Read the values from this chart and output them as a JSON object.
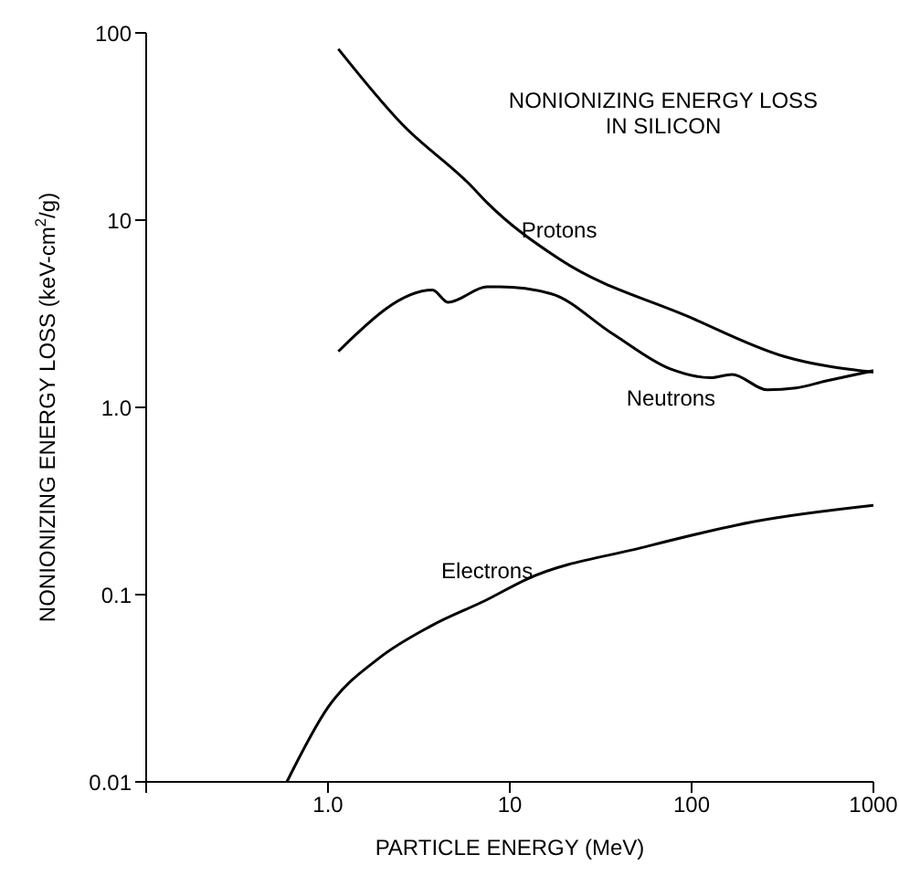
{
  "chart_data": {
    "type": "line",
    "title": "NONIONIZING ENERGY LOSS\nIN SILICON",
    "xlabel": "PARTICLE ENERGY (MeV)",
    "ylabel": "NONIONIZING ENERGY LOSS (keV-cm$^{2}$/g)",
    "log": "xy",
    "grid": false,
    "legend": false,
    "marker": "none",
    "line_style": "solid",
    "xlim": [
      0.1,
      1000
    ],
    "xticks": [
      {
        "value": 0.1,
        "label": null
      },
      {
        "value": 1,
        "label": "1.0"
      },
      10,
      100,
      1000
    ],
    "ylim": [
      0.01,
      100
    ],
    "yticks": [
      0.01,
      0.1,
      {
        "value": 1,
        "label": "1.0"
      },
      10,
      100
    ],
    "series": [
      {
        "name": "Protons",
        "color": "#000000",
        "x": [
          1.14,
          2.55,
          6.06,
          7.5,
          18.7,
          95.5,
          323,
          1000
        ],
        "values": [
          82,
          32.6,
          15.4,
          12.4,
          6.2,
          3.06,
          1.87,
          1.54
        ]
      },
      {
        "name": "Neutrons",
        "color": "#000000",
        "x": [
          1.14,
          3.76,
          4.57,
          7.5,
          8.8,
          16.8,
          36.8,
          77,
          127,
          167,
          261,
          375,
          543,
          1000
        ],
        "values": [
          1.99,
          4.23,
          3.64,
          4.4,
          4.4,
          4.05,
          2.47,
          1.6,
          1.44,
          1.5,
          1.24,
          1.27,
          1.38,
          1.57
        ]
      },
      {
        "name": "Electrons",
        "color": "#000000",
        "x": [
          0.594,
          1.0,
          1.92,
          3.68,
          7.5,
          12.4,
          53,
          228,
          1000
        ],
        "values": [
          0.01,
          0.025,
          0.046,
          0.068,
          0.094,
          0.121,
          0.178,
          0.247,
          0.3
        ]
      }
    ]
  }
}
